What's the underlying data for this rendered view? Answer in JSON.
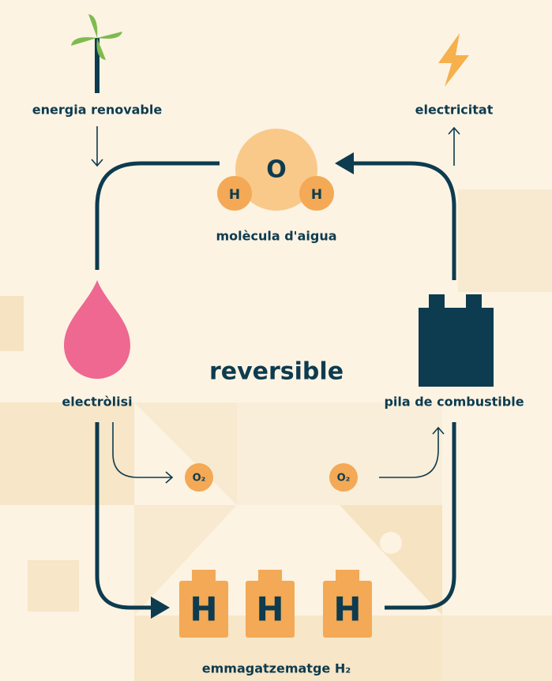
{
  "nodes": {
    "source": "energia renovable",
    "output": "electricitat",
    "molecule": {
      "label": "molècula d'aigua",
      "atoms": [
        "O",
        "H",
        "H"
      ]
    },
    "center": "reversible",
    "electrolysis": "electròlisi",
    "fuel_cell": "pila de combustible",
    "oxygen": [
      "O₂",
      "O₂"
    ],
    "storage": {
      "label": "emmagatzematge H₂",
      "tanks": [
        "H",
        "H",
        "H"
      ]
    }
  }
}
